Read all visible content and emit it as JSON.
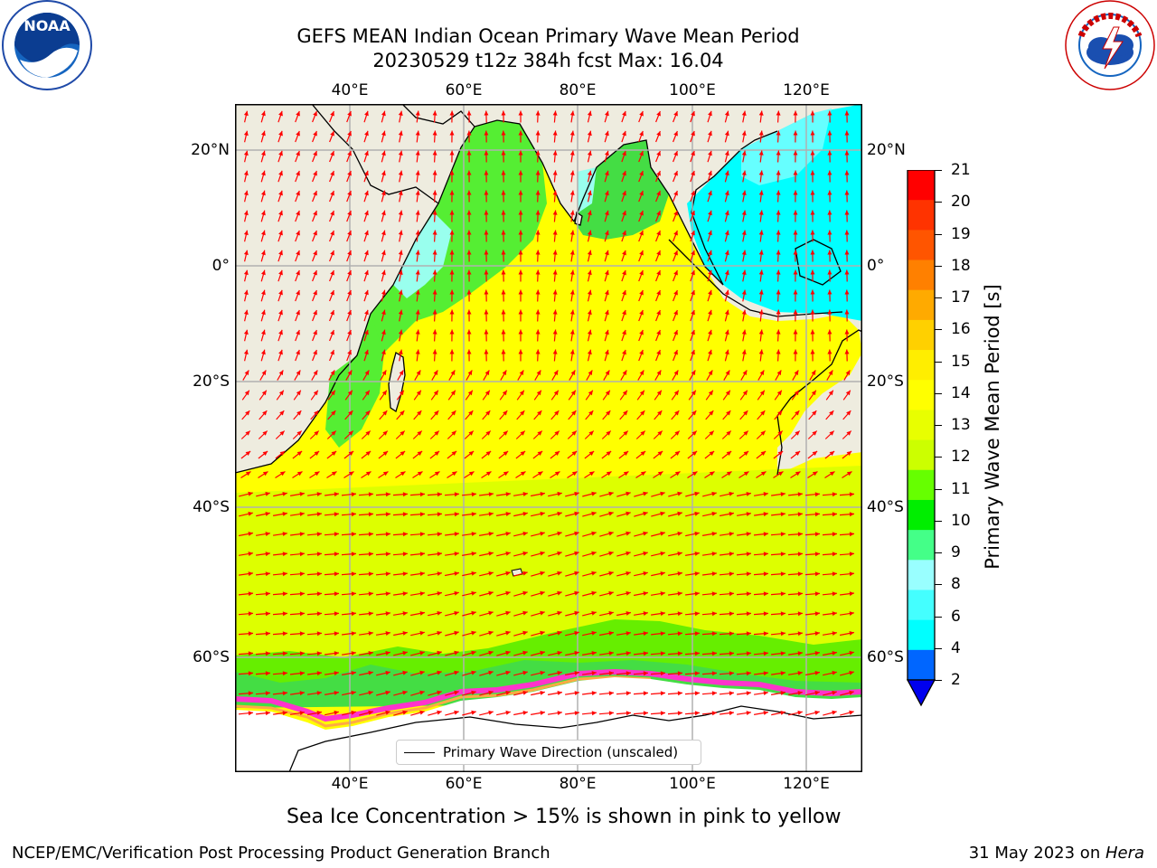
{
  "title": {
    "line1": "GEFS MEAN Indian Ocean Primary Wave Mean Period",
    "line2": "20230529 t12z 384h fcst   Max: 16.04"
  },
  "logos": {
    "left": {
      "text": "NOAA",
      "ring_text": "NATIONAL OCEANIC AND ATMOSPHERIC ADMINISTRATION · U.S. DEPARTMENT OF COMMERCE"
    },
    "right": {
      "ring_text": "NATIONAL WEATHER SERVICE"
    }
  },
  "map": {
    "lon_ticks": [
      "40°E",
      "60°E",
      "80°E",
      "100°E",
      "120°E"
    ],
    "lat_ticks": [
      "20°N",
      "0°",
      "20°S",
      "40°S",
      "60°S"
    ],
    "colors": {
      "land": "#eeecdf",
      "ocean_field": "#ffff00",
      "arrow": "#ff0000",
      "grid": "#b0b0b0",
      "ice": "#ff33cc"
    }
  },
  "colorbar": {
    "label": "Primary Wave Mean Period [s]",
    "ticks": [
      "21",
      "20",
      "19",
      "18",
      "17",
      "16",
      "15",
      "14",
      "13",
      "12",
      "11",
      "10",
      "9",
      "8",
      "6",
      "4",
      "2"
    ],
    "colors": [
      "#ff0000",
      "#ff3300",
      "#ff5500",
      "#ff8000",
      "#ffaa00",
      "#ffd000",
      "#ffee00",
      "#ffff00",
      "#e8ff00",
      "#ccff00",
      "#66ff00",
      "#00ee00",
      "#44ff88",
      "#99ffff",
      "#44ffff",
      "#00ffff",
      "#0066ff"
    ],
    "extend_color": "#0000ee"
  },
  "legend": {
    "label": "Primary Wave Direction (unscaled)"
  },
  "caption": "Sea Ice Concentration > 15% is shown in pink to yellow",
  "footer": {
    "left": "NCEP/EMC/Verification Post Processing Product Generation Branch",
    "right_prefix": "31 May 2023 on ",
    "right_italic": "Hera"
  }
}
